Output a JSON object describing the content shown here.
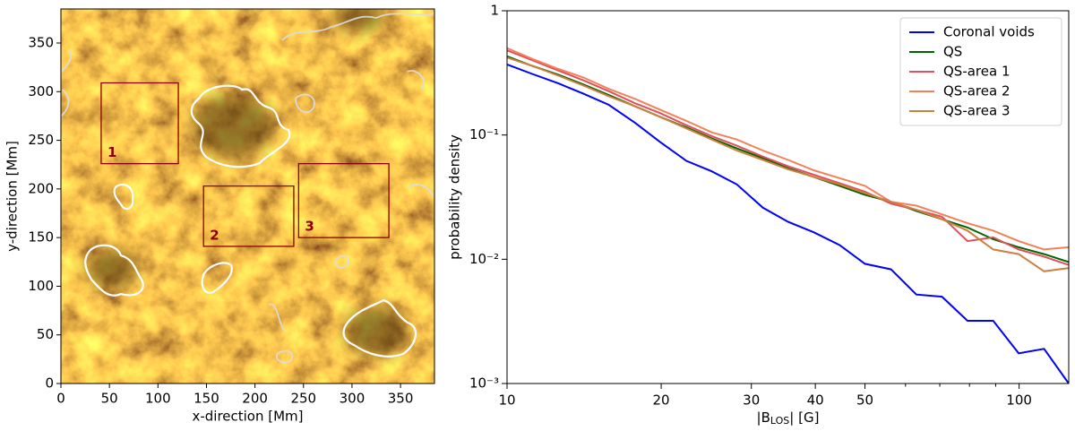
{
  "chart_data": [
    {
      "type": "image",
      "xlabel": "x-direction [Mm]",
      "ylabel": "y-direction [Mm]",
      "xlim": [
        0,
        385
      ],
      "ylim": [
        0,
        385
      ],
      "xticks": [
        0,
        50,
        100,
        150,
        200,
        250,
        300,
        350
      ],
      "yticks": [
        0,
        50,
        100,
        150,
        200,
        250,
        300,
        350
      ],
      "region_color": "#8b0000",
      "regions": [
        {
          "label": "1",
          "x": [
            41.5,
            121
          ],
          "y": [
            226,
            309
          ]
        },
        {
          "label": "2",
          "x": [
            147,
            240
          ],
          "y": [
            141,
            203
          ]
        },
        {
          "label": "3",
          "x": [
            245,
            338
          ],
          "y": [
            150,
            226
          ]
        }
      ]
    },
    {
      "type": "line",
      "ylabel": "probability density",
      "xlabel": [
        "|B",
        "LOS",
        "| [G]"
      ],
      "log_x": true,
      "log_y": true,
      "legend": "upper right",
      "xlim": [
        10,
        125
      ],
      "ylim": [
        0.001,
        1
      ],
      "xticks": [
        10,
        20,
        30,
        40,
        50,
        100
      ],
      "xminorticks": [
        60,
        70,
        80,
        90
      ],
      "yticks": [
        {
          "value": 0.001,
          "label": "10⁻³"
        },
        {
          "value": 0.01,
          "label": "10⁻²"
        },
        {
          "value": 0.1,
          "label": "10⁻¹"
        },
        1
      ],
      "x": [
        10,
        11.2,
        12.6,
        14.1,
        15.8,
        17.8,
        19.9,
        22.4,
        25.1,
        28.1,
        31.6,
        35.4,
        39.7,
        44.6,
        50,
        56.2,
        63,
        70.7,
        79.3,
        89,
        99.8,
        111.9,
        125
      ],
      "series": [
        {
          "name": "Coronal voids",
          "color": "#0000ff",
          "values": [
            0.37,
            0.31,
            0.26,
            0.215,
            0.175,
            0.125,
            0.088,
            0.062,
            0.051,
            0.04,
            0.026,
            0.02,
            0.0165,
            0.013,
            0.0092,
            0.0083,
            0.0052,
            0.005,
            0.0032,
            0.0032,
            0.00175,
            0.0019,
            0.001
          ]
        },
        {
          "name": "QS",
          "color": "#006400",
          "values": [
            0.43,
            0.36,
            0.305,
            0.255,
            0.21,
            0.17,
            0.14,
            0.115,
            0.094,
            0.078,
            0.065,
            0.054,
            0.046,
            0.039,
            0.033,
            0.029,
            0.0245,
            0.021,
            0.018,
            0.0145,
            0.0125,
            0.011,
            0.0095
          ]
        },
        {
          "name": "QS-area 1",
          "color": "#e0505a",
          "values": [
            0.48,
            0.4,
            0.33,
            0.275,
            0.225,
            0.18,
            0.15,
            0.12,
            0.098,
            0.082,
            0.067,
            0.056,
            0.048,
            0.041,
            0.035,
            0.028,
            0.025,
            0.022,
            0.014,
            0.015,
            0.012,
            0.0105,
            0.009
          ]
        },
        {
          "name": "QS-area 2",
          "color": "#f4805a",
          "values": [
            0.5,
            0.41,
            0.34,
            0.29,
            0.235,
            0.195,
            0.16,
            0.13,
            0.105,
            0.092,
            0.075,
            0.063,
            0.052,
            0.045,
            0.039,
            0.029,
            0.027,
            0.023,
            0.0195,
            0.017,
            0.014,
            0.012,
            0.0125
          ]
        },
        {
          "name": "QS-area 3",
          "color": "#cd8040",
          "values": [
            0.42,
            0.36,
            0.3,
            0.25,
            0.205,
            0.17,
            0.14,
            0.113,
            0.092,
            0.075,
            0.063,
            0.053,
            0.046,
            0.04,
            0.034,
            0.029,
            0.025,
            0.021,
            0.017,
            0.012,
            0.011,
            0.008,
            0.0085
          ]
        }
      ]
    }
  ]
}
